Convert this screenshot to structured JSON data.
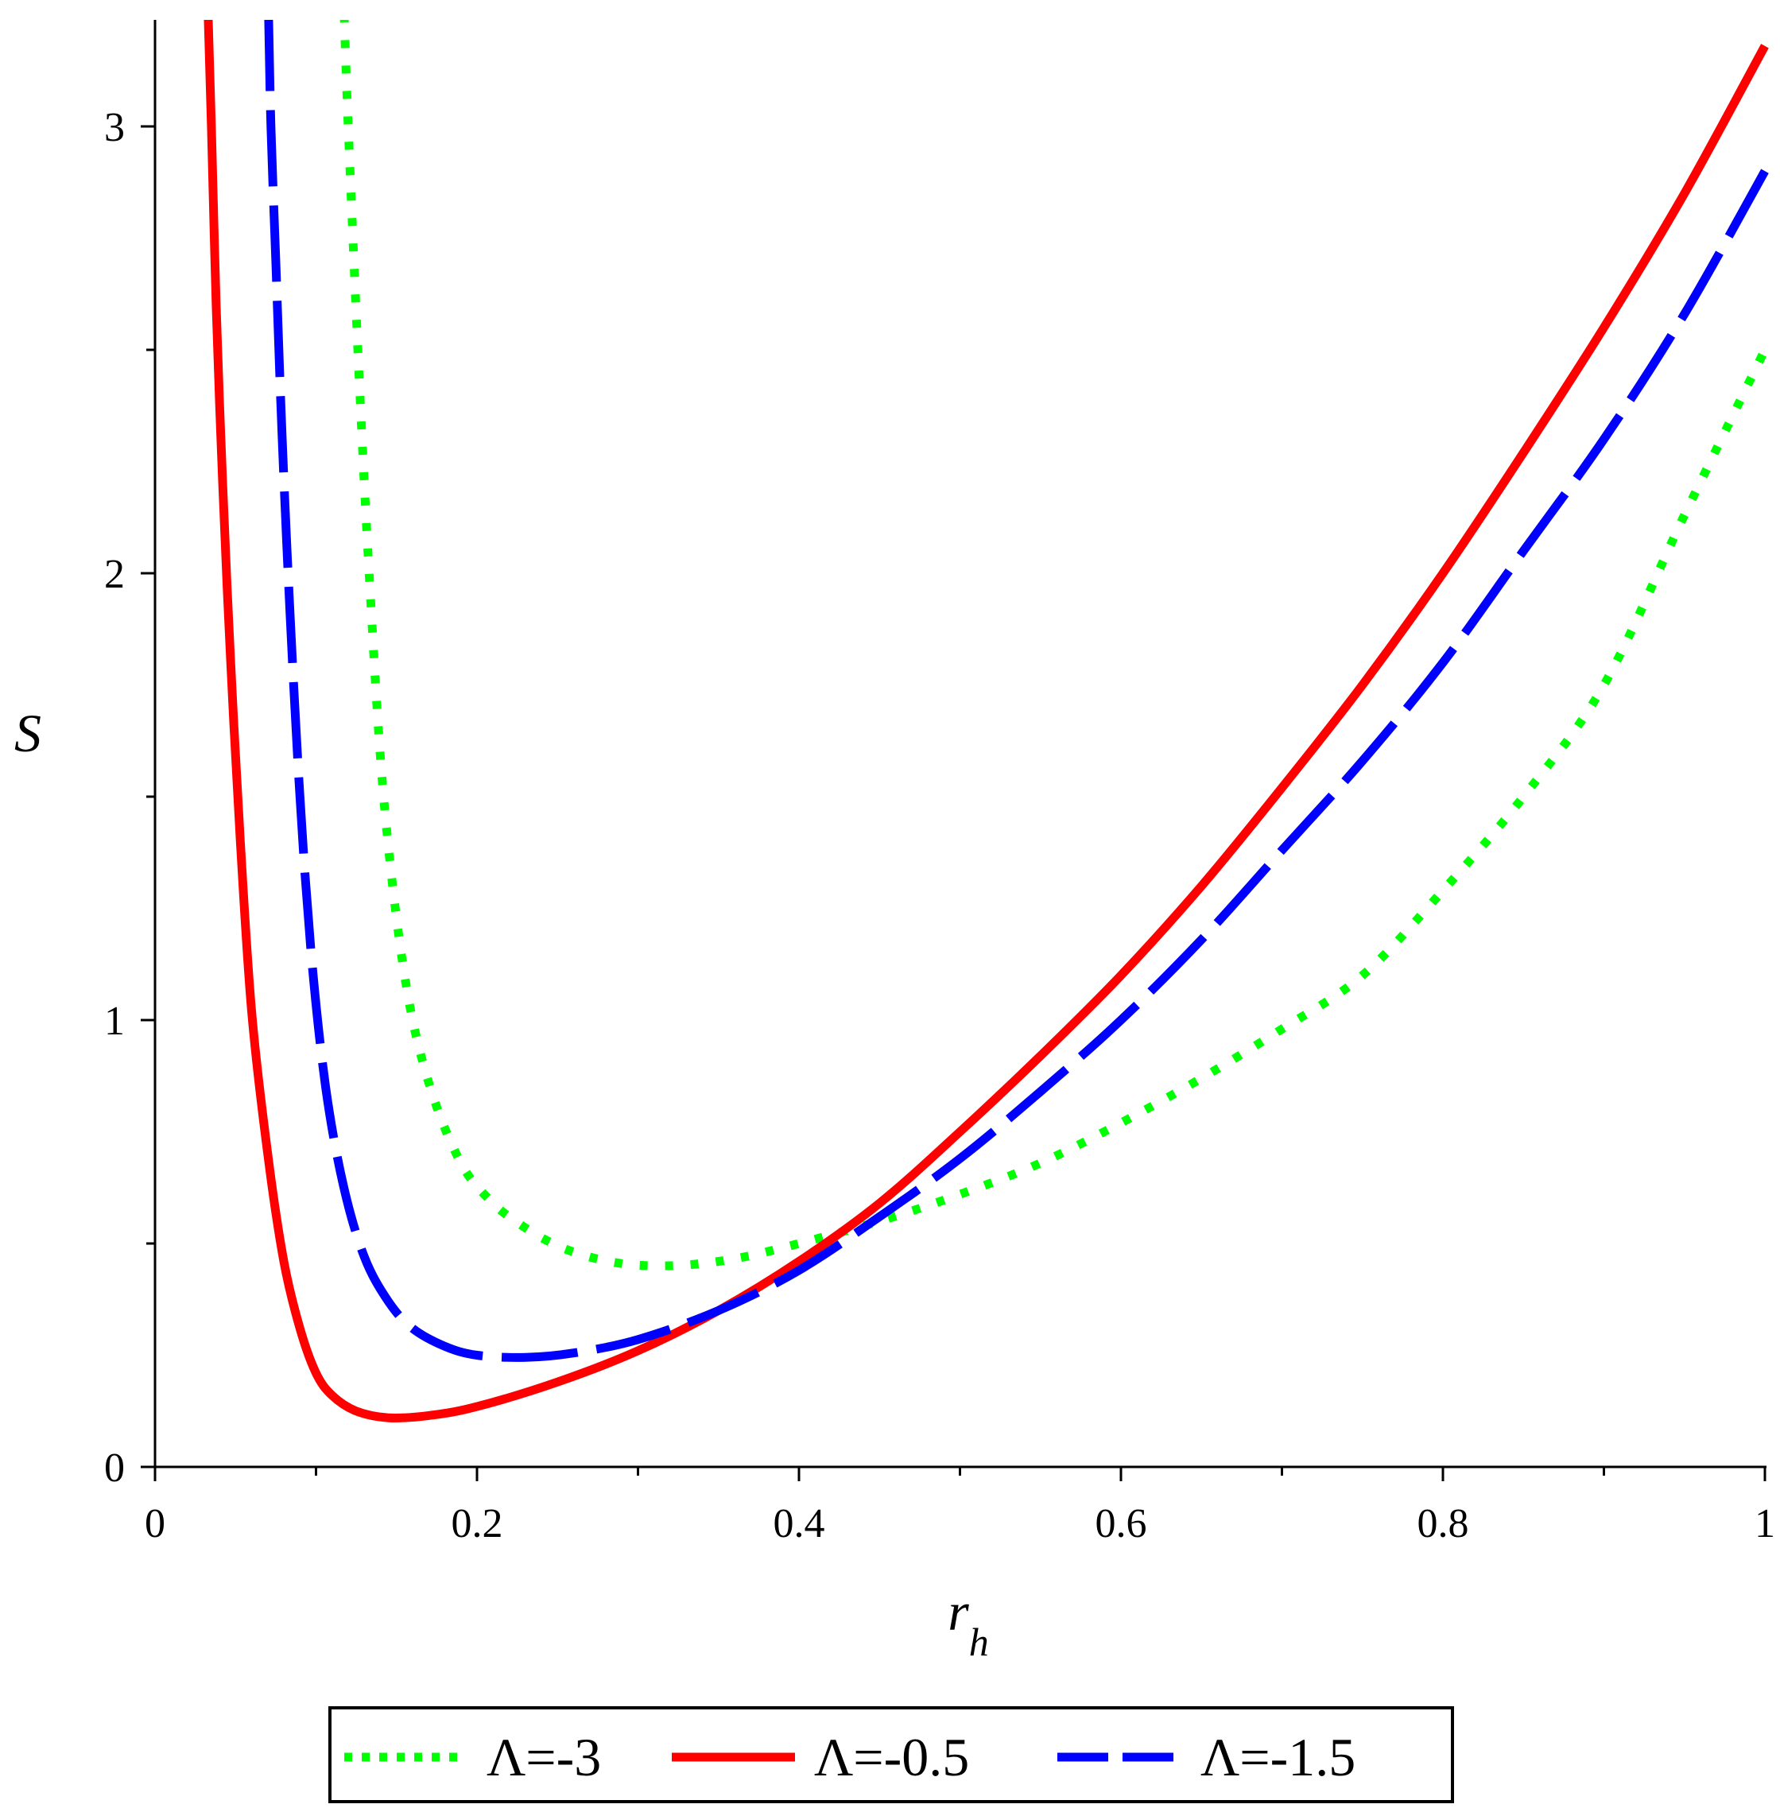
{
  "chart_data": {
    "type": "line",
    "xlabel": {
      "main": "r",
      "sub": "h"
    },
    "ylabel": "S",
    "xlim": [
      0,
      1
    ],
    "ylim": [
      0,
      3.25
    ],
    "x_ticks": [
      0,
      0.2,
      0.4,
      0.6,
      0.8,
      1
    ],
    "x_tick_labels": [
      "0",
      "0.2",
      "0.4",
      "0.6",
      "0.8",
      "1"
    ],
    "x_minor_ticks": [
      0.1,
      0.3,
      0.5,
      0.7,
      0.9
    ],
    "y_ticks": [
      0,
      1,
      2,
      3
    ],
    "y_tick_labels": [
      "0",
      "1",
      "2",
      "3"
    ],
    "y_minor_ticks": [
      0.5,
      1.5,
      2.5
    ],
    "grid": false,
    "legend_position": "bottom, below plot",
    "series": [
      {
        "name": "Λ=-3",
        "color": "#00ff00",
        "style": "dotted",
        "points": [
          [
            0.1175,
            3.25
          ],
          [
            0.12,
            3.0
          ],
          [
            0.126,
            2.5
          ],
          [
            0.133,
            2.0
          ],
          [
            0.142,
            1.5
          ],
          [
            0.155,
            1.1
          ],
          [
            0.17,
            0.86
          ],
          [
            0.19,
            0.68
          ],
          [
            0.21,
            0.59
          ],
          [
            0.23,
            0.535
          ],
          [
            0.25,
            0.495
          ],
          [
            0.27,
            0.47
          ],
          [
            0.29,
            0.455
          ],
          [
            0.31,
            0.45
          ],
          [
            0.33,
            0.452
          ],
          [
            0.35,
            0.46
          ],
          [
            0.37,
            0.473
          ],
          [
            0.4,
            0.5
          ],
          [
            0.45,
            0.55
          ],
          [
            0.5,
            0.61
          ],
          [
            0.55,
            0.68
          ],
          [
            0.6,
            0.77
          ],
          [
            0.65,
            0.87
          ],
          [
            0.7,
            0.98
          ],
          [
            0.75,
            1.1
          ],
          [
            0.8,
            1.29
          ],
          [
            0.85,
            1.5
          ],
          [
            0.9,
            1.75
          ],
          [
            0.95,
            2.13
          ],
          [
            1.0,
            2.5
          ]
        ]
      },
      {
        "name": "Λ=-0.5",
        "color": "#ff0000",
        "style": "solid",
        "points": [
          [
            0.033,
            3.25
          ],
          [
            0.035,
            3.0
          ],
          [
            0.038,
            2.6
          ],
          [
            0.042,
            2.2
          ],
          [
            0.047,
            1.8
          ],
          [
            0.053,
            1.4
          ],
          [
            0.06,
            1.02
          ],
          [
            0.07,
            0.7
          ],
          [
            0.08,
            0.46
          ],
          [
            0.09,
            0.31
          ],
          [
            0.1,
            0.21
          ],
          [
            0.11,
            0.16
          ],
          [
            0.125,
            0.125
          ],
          [
            0.145,
            0.11
          ],
          [
            0.17,
            0.115
          ],
          [
            0.2,
            0.135
          ],
          [
            0.25,
            0.19
          ],
          [
            0.3,
            0.26
          ],
          [
            0.35,
            0.35
          ],
          [
            0.4,
            0.46
          ],
          [
            0.45,
            0.59
          ],
          [
            0.5,
            0.75
          ],
          [
            0.55,
            0.92
          ],
          [
            0.6,
            1.1
          ],
          [
            0.65,
            1.3
          ],
          [
            0.7,
            1.52
          ],
          [
            0.75,
            1.75
          ],
          [
            0.8,
            2.0
          ],
          [
            0.85,
            2.27
          ],
          [
            0.9,
            2.55
          ],
          [
            0.95,
            2.85
          ],
          [
            1.0,
            3.18
          ]
        ]
      },
      {
        "name": "Λ=-1.5",
        "color": "#0000ff",
        "style": "dashed",
        "points": [
          [
            0.0705,
            3.25
          ],
          [
            0.072,
            3.0
          ],
          [
            0.075,
            2.7
          ],
          [
            0.079,
            2.3
          ],
          [
            0.084,
            1.9
          ],
          [
            0.09,
            1.5
          ],
          [
            0.097,
            1.15
          ],
          [
            0.106,
            0.85
          ],
          [
            0.117,
            0.63
          ],
          [
            0.13,
            0.47
          ],
          [
            0.145,
            0.37
          ],
          [
            0.16,
            0.31
          ],
          [
            0.18,
            0.27
          ],
          [
            0.2,
            0.25
          ],
          [
            0.23,
            0.245
          ],
          [
            0.26,
            0.255
          ],
          [
            0.3,
            0.285
          ],
          [
            0.35,
            0.35
          ],
          [
            0.4,
            0.44
          ],
          [
            0.45,
            0.56
          ],
          [
            0.5,
            0.69
          ],
          [
            0.55,
            0.84
          ],
          [
            0.6,
            1.0
          ],
          [
            0.65,
            1.18
          ],
          [
            0.7,
            1.38
          ],
          [
            0.75,
            1.58
          ],
          [
            0.8,
            1.8
          ],
          [
            0.85,
            2.05
          ],
          [
            0.9,
            2.3
          ],
          [
            0.95,
            2.58
          ],
          [
            1.0,
            2.9
          ]
        ]
      }
    ]
  },
  "legend": {
    "items": [
      {
        "label": "Λ=-3",
        "color": "#00ff00",
        "style": "dotted"
      },
      {
        "label": "Λ=-0.5",
        "color": "#ff0000",
        "style": "solid"
      },
      {
        "label": "Λ=-1.5",
        "color": "#0000ff",
        "style": "dashed"
      }
    ]
  }
}
